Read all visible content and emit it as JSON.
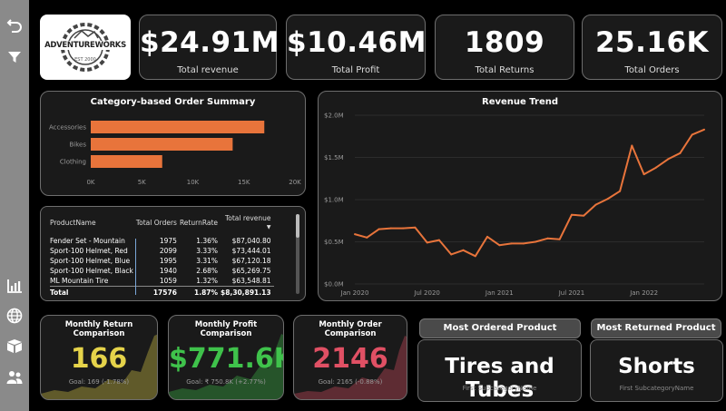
{
  "brand": {
    "logo_text": "ADVENTUREWORKS",
    "logo_sub": "EST 2000"
  },
  "kpis": [
    {
      "value": "$24.91M",
      "label": "Total revenue"
    },
    {
      "value": "$10.46M",
      "label": "Total Profit"
    },
    {
      "value": "1809",
      "label": "Total Returns"
    },
    {
      "value": "25.16K",
      "label": "Total Orders"
    }
  ],
  "category_chart": {
    "title": "Category-based Order Summary",
    "chart_data": {
      "type": "bar",
      "orientation": "horizontal",
      "categories": [
        "Accessories",
        "Bikes",
        "Clothing"
      ],
      "values": [
        17000,
        13900,
        7000
      ],
      "xlim": [
        0,
        20000
      ],
      "xticks": [
        "0K",
        "5K",
        "10K",
        "15K",
        "20K"
      ],
      "color": "#e8743b"
    }
  },
  "revenue_trend": {
    "title": "Revenue Trend",
    "chart_data": {
      "type": "line",
      "ylim": [
        0,
        2000000
      ],
      "yticks": [
        "$0.0M",
        "$0.5M",
        "$1.0M",
        "$1.5M",
        "$2.0M"
      ],
      "xticks": [
        "Jan 2020",
        "Jul 2020",
        "Jan 2021",
        "Jul 2021",
        "Jan 2022"
      ],
      "values": [
        0.59,
        0.55,
        0.65,
        0.66,
        0.66,
        0.67,
        0.49,
        0.52,
        0.35,
        0.4,
        0.33,
        0.56,
        0.46,
        0.48,
        0.48,
        0.5,
        0.54,
        0.53,
        0.82,
        0.81,
        0.94,
        1.01,
        1.1,
        1.64,
        1.3,
        1.38,
        1.48,
        1.55,
        1.77,
        1.83
      ],
      "unit": "$M",
      "color": "#e8743b"
    }
  },
  "table": {
    "columns": [
      "ProductName",
      "Total Orders",
      "ReturnRate",
      "Total revenue"
    ],
    "rows": [
      [
        "Fender Set - Mountain",
        "1975",
        "1.36%",
        "$87,040.80"
      ],
      [
        "Sport-100 Helmet, Red",
        "2099",
        "3.33%",
        "$73,444.01"
      ],
      [
        "Sport-100 Helmet, Blue",
        "1995",
        "3.31%",
        "$67,120.18"
      ],
      [
        "Sport-100 Helmet, Black",
        "1940",
        "2.68%",
        "$65,269.75"
      ],
      [
        "ML Mountain Tire",
        "1059",
        "1.32%",
        "$63,548.81"
      ]
    ],
    "total": [
      "Total",
      "17576",
      "1.87%",
      "$8,30,891.13"
    ]
  },
  "minis": [
    {
      "title": "Monthly Return Comparison",
      "value": "166",
      "goal": "Goal: 169 (-1.78%)",
      "color": "#e5d34a"
    },
    {
      "title": "Monthly Profit Comparison",
      "value": "$771.6K",
      "goal": "Goal: ₹ 750.8K (+2.77%)",
      "color": "#3fc24b"
    },
    {
      "title": "Monthly Order Comparison",
      "value": "2146",
      "goal": "Goal: 2165 (-0.88%)",
      "color": "#e05064"
    }
  ],
  "most_ordered": {
    "header": "Most Ordered Product",
    "value": "Tires and Tubes",
    "sub": "First SubcategoryName"
  },
  "most_returned": {
    "header": "Most Returned Product",
    "value": "Shorts",
    "sub": "First SubcategoryName"
  }
}
